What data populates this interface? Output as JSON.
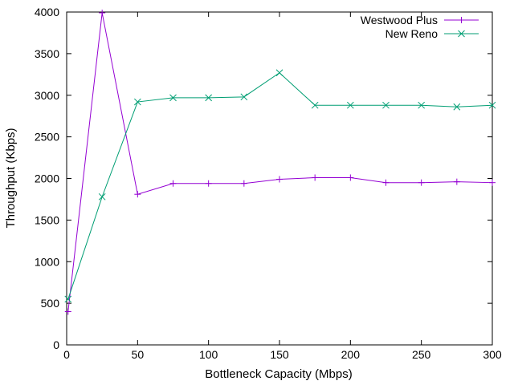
{
  "chart_data": {
    "type": "line",
    "title": "",
    "xlabel": "Bottleneck Capacity (Mbps)",
    "ylabel": "Throughput (Kbps)",
    "xlim": [
      0,
      300
    ],
    "ylim": [
      0,
      4000
    ],
    "xticks": [
      0,
      50,
      100,
      150,
      200,
      250,
      300
    ],
    "yticks": [
      0,
      500,
      1000,
      1500,
      2000,
      2500,
      3000,
      3500,
      4000
    ],
    "grid": false,
    "legend_position": "top-right",
    "series": [
      {
        "name": "Westwood Plus",
        "color": "#9400d3",
        "marker": "plus",
        "x": [
          1,
          25,
          50,
          75,
          100,
          125,
          150,
          175,
          200,
          225,
          250,
          275,
          300
        ],
        "y": [
          400,
          3990,
          1810,
          1940,
          1940,
          1940,
          1990,
          2010,
          2010,
          1950,
          1950,
          1960,
          1950
        ]
      },
      {
        "name": "New Reno",
        "color": "#009e73",
        "marker": "cross",
        "x": [
          1,
          25,
          50,
          75,
          100,
          125,
          150,
          175,
          200,
          225,
          250,
          275,
          300
        ],
        "y": [
          550,
          1780,
          2920,
          2970,
          2970,
          2980,
          3270,
          2880,
          2880,
          2880,
          2880,
          2860,
          2880
        ]
      }
    ]
  }
}
